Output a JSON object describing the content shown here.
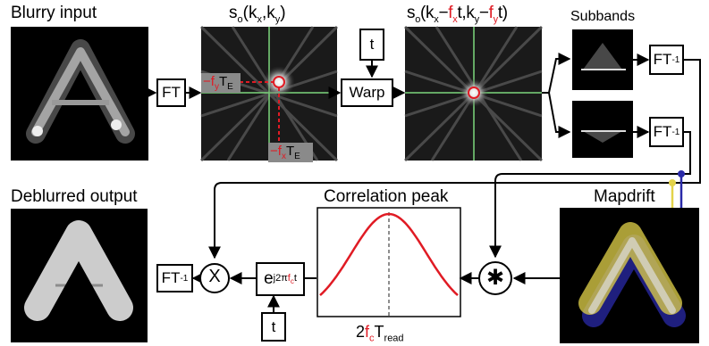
{
  "labels": {
    "blurry_input": "Blurry input",
    "s0": "s",
    "s0_sub": "o",
    "s0_args": "(k",
    "s0_x": "x",
    "s0_comma": ",k",
    "s0_y": "y",
    "s0_close": ")",
    "shift_prefix": "(k",
    "shift_x_sub": "x",
    "shift_minus1": "−",
    "shift_fx": "f",
    "shift_fx_sub": "x",
    "shift_t1": "t,k",
    "shift_y_sub": "y",
    "shift_minus2": "−",
    "shift_fy": "f",
    "shift_fy_sub": "y",
    "shift_t2": "t)",
    "subbands": "Subbands",
    "deblurred_output": "Deblurred output",
    "correlation_peak": "Correlation peak",
    "mapdrift": "Mapdrift",
    "fy_label_minus": "−",
    "fy_label_f": "f",
    "fy_label_sub": "y",
    "fy_label_T": "T",
    "fy_label_E": "E",
    "fx_label_minus": "−",
    "fx_label_f": "f",
    "fx_label_sub": "x",
    "fx_label_T": "T",
    "fx_label_E": "E",
    "peak_2": "2",
    "peak_f": "f",
    "peak_c": "c",
    "peak_T": "T",
    "peak_read": "read"
  },
  "boxes": {
    "ft": "FT",
    "t_top": "t",
    "warp": "Warp",
    "ift_top": "FT",
    "ift_bottom": "FT",
    "ift_out": "FT",
    "ift_sup": "-1",
    "multiply": "X",
    "convolve": "✱",
    "exp_e": "e",
    "exp_sup_j": "j2π",
    "exp_sup_f": "f",
    "exp_sup_c": "c",
    "exp_sup_t": "t",
    "t_bottom": "t"
  },
  "colors": {
    "accent_red": "#e01b24",
    "grid_green": "#7dd87d",
    "mapdrift_yellow": "#e3d34a",
    "mapdrift_blue": "#2a2aa8"
  }
}
